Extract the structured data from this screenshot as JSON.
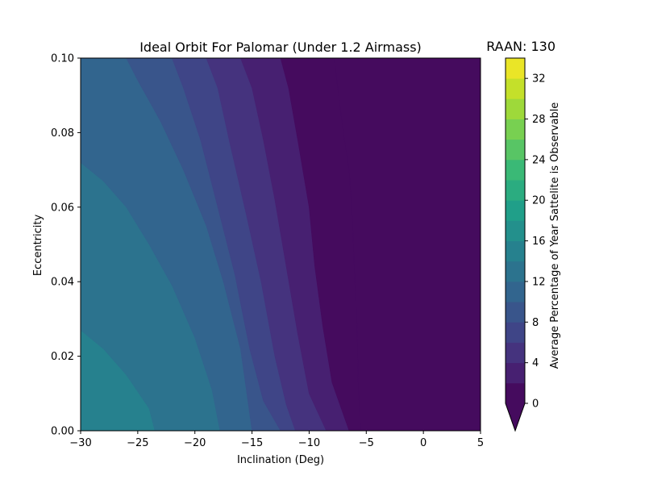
{
  "chart_data": {
    "type": "contour",
    "title": "Ideal Orbit For Palomar (Under 1.2 Airmass)",
    "side_title": "RAAN: 130",
    "xlabel": "Inclination (Deg)",
    "ylabel": "Eccentricity",
    "xlim": [
      -30,
      5
    ],
    "ylim": [
      0,
      0.1
    ],
    "x_ticks": [
      "−30",
      "−25",
      "−20",
      "−15",
      "−10",
      "−5",
      "0",
      "5"
    ],
    "x_tick_values": [
      -30,
      -25,
      -20,
      -15,
      -10,
      -5,
      0,
      5
    ],
    "y_ticks": [
      "0.00",
      "0.02",
      "0.04",
      "0.06",
      "0.08",
      "0.10"
    ],
    "y_tick_values": [
      0,
      0.02,
      0.04,
      0.06,
      0.08,
      0.1
    ],
    "colorbar": {
      "label": "Average Percentage of Year Sattelite is Observable",
      "range": [
        0,
        34
      ],
      "level_step": 2,
      "tick_values": [
        0,
        4,
        8,
        12,
        16,
        20,
        24,
        28,
        32
      ],
      "tick_labels": [
        "0",
        "4",
        "8",
        "12",
        "16",
        "20",
        "24",
        "28",
        "32"
      ],
      "extend": "min",
      "colormap": "viridis"
    },
    "contour_boundaries": [
      {
        "level": 14,
        "points": [
          [
            -30,
            0.027
          ],
          [
            -28,
            0.022
          ],
          [
            -26,
            0.015
          ],
          [
            -24,
            0.006
          ],
          [
            -23.5,
            0.0
          ]
        ]
      },
      {
        "level": 12,
        "points": [
          [
            -30,
            0.072
          ],
          [
            -28,
            0.067
          ],
          [
            -26,
            0.06
          ],
          [
            -24,
            0.05
          ],
          [
            -22,
            0.039
          ],
          [
            -20,
            0.025
          ],
          [
            -18.5,
            0.011
          ],
          [
            -17.8,
            0.0
          ]
        ]
      },
      {
        "level": 10,
        "points": [
          [
            -26,
            0.1
          ],
          [
            -25,
            0.094
          ],
          [
            -23,
            0.083
          ],
          [
            -21,
            0.07
          ],
          [
            -19,
            0.055
          ],
          [
            -17.5,
            0.04
          ],
          [
            -16,
            0.022
          ],
          [
            -15,
            0.0
          ]
        ]
      },
      {
        "level": 8,
        "points": [
          [
            -22,
            0.1
          ],
          [
            -21,
            0.092
          ],
          [
            -19.5,
            0.078
          ],
          [
            -18,
            0.06
          ],
          [
            -16.5,
            0.042
          ],
          [
            -15.2,
            0.022
          ],
          [
            -14,
            0.008
          ],
          [
            -12.5,
            0.0
          ]
        ]
      },
      {
        "level": 6,
        "points": [
          [
            -19,
            0.1
          ],
          [
            -18,
            0.092
          ],
          [
            -17,
            0.078
          ],
          [
            -15.5,
            0.058
          ],
          [
            -14.2,
            0.04
          ],
          [
            -13,
            0.02
          ],
          [
            -12,
            0.007
          ],
          [
            -11.2,
            0.0
          ]
        ]
      },
      {
        "level": 4,
        "points": [
          [
            -16,
            0.1
          ],
          [
            -15,
            0.092
          ],
          [
            -14,
            0.078
          ],
          [
            -13,
            0.062
          ],
          [
            -12,
            0.044
          ],
          [
            -11,
            0.026
          ],
          [
            -10,
            0.01
          ],
          [
            -8.5,
            0.0
          ]
        ]
      },
      {
        "level": 2,
        "points": [
          [
            -12.5,
            0.1
          ],
          [
            -11.8,
            0.092
          ],
          [
            -11,
            0.078
          ],
          [
            -10,
            0.06
          ],
          [
            -9.5,
            0.044
          ],
          [
            -8.8,
            0.028
          ],
          [
            -8,
            0.013
          ],
          [
            -6.5,
            0.0
          ]
        ]
      },
      {
        "level": 0,
        "points": [
          [
            -7.8,
            0.1
          ],
          [
            -7.5,
            0.092
          ],
          [
            -7,
            0.08
          ],
          [
            -6.5,
            0.07
          ],
          [
            -6.2,
            0.056
          ],
          [
            -6,
            0.04
          ],
          [
            -5.8,
            0.028
          ],
          [
            -5.7,
            0.012
          ],
          [
            -5.5,
            0.0
          ]
        ]
      }
    ]
  }
}
